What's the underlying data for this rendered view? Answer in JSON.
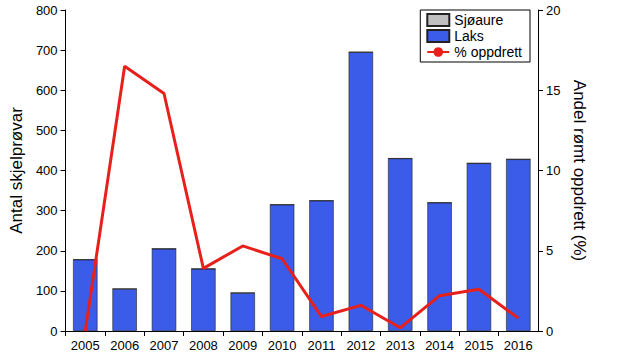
{
  "chart_data": {
    "type": "bar",
    "categories": [
      "2005",
      "2006",
      "2007",
      "2008",
      "2009",
      "2010",
      "2011",
      "2012",
      "2013",
      "2014",
      "2015",
      "2016"
    ],
    "series": [
      {
        "name": "Sjøaure",
        "color": "#c0c0c0",
        "type": "bar",
        "values": [
          0,
          0,
          0,
          0,
          0,
          0,
          0,
          0,
          0,
          0,
          0,
          0
        ]
      },
      {
        "name": "Laks",
        "color": "#3a5ce8",
        "type": "bar",
        "values": [
          178,
          105,
          205,
          155,
          95,
          315,
          325,
          695,
          430,
          320,
          418,
          428
        ]
      },
      {
        "name": "% oppdrett",
        "color": "#e8201c",
        "type": "line",
        "axis": "y2",
        "marker": "none",
        "values": [
          0,
          16.5,
          14.8,
          3.9,
          5.3,
          4.5,
          0.9,
          1.6,
          0.2,
          2.2,
          2.6,
          0.8
        ]
      }
    ],
    "y_label": "Antal skjelprøvar",
    "y2_label": "Andel rømt oppdrett (%)",
    "ylim": [
      0,
      800
    ],
    "yticks": [
      0,
      100,
      200,
      300,
      400,
      500,
      600,
      700,
      800
    ],
    "y2lim": [
      0,
      20
    ],
    "y2ticks": [
      0,
      5,
      10,
      15,
      20
    ],
    "stacked": true,
    "grid": false,
    "legend": "top-right"
  }
}
